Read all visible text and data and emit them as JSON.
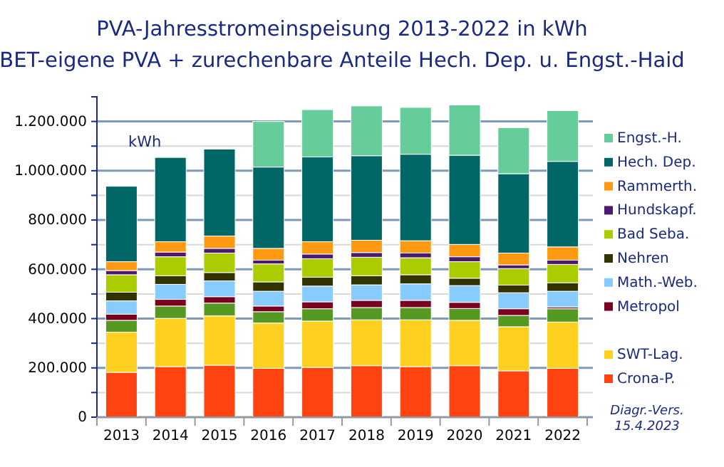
{
  "chart_data": {
    "type": "bar",
    "stacked": true,
    "title": "PVA-Jahresstromeinspeisung 2013-2022 in kWh",
    "subtitle": "BET-eigene PVA + zurechenbare Anteile Hech. Dep. u. Engst.-Haid",
    "ylabel": "kWh",
    "categories": [
      "2013",
      "2014",
      "2015",
      "2016",
      "2017",
      "2018",
      "2019",
      "2020",
      "2021",
      "2022"
    ],
    "series": [
      {
        "name": "Crona-P.",
        "color": "#ff4411",
        "values": [
          182000,
          205000,
          211000,
          198000,
          202000,
          209000,
          205000,
          209000,
          188000,
          198000
        ]
      },
      {
        "name": "SWT-Lag.",
        "color": "#ffd020",
        "values": [
          163000,
          196000,
          200000,
          184000,
          188000,
          186000,
          190000,
          184000,
          179000,
          188000
        ]
      },
      {
        "color": "#559922",
        "values": [
          48000,
          50000,
          52000,
          46000,
          50000,
          50000,
          50000,
          48000,
          46000,
          54000
        ]
      },
      {
        "name": "Metropol",
        "color": "#7a0022",
        "values": [
          25000,
          27000,
          26000,
          23000,
          28000,
          29000,
          29000,
          25000,
          27000,
          7000
        ]
      },
      {
        "name": "Math.-Web.",
        "color": "#88ccff",
        "values": [
          54000,
          61000,
          64000,
          60000,
          64000,
          63000,
          67000,
          68000,
          65000,
          64000
        ]
      },
      {
        "name": "Nehren",
        "color": "#333300",
        "values": [
          35000,
          35000,
          34000,
          38000,
          36000,
          37000,
          37000,
          30000,
          31000,
          34000
        ]
      },
      {
        "name": "Bad Seba.",
        "color": "#aacc00",
        "values": [
          71000,
          77000,
          79000,
          73000,
          75000,
          75000,
          69000,
          67000,
          67000,
          75000
        ]
      },
      {
        "name": "Hundskapf.",
        "color": "#4b1a6e",
        "values": [
          17000,
          19000,
          19000,
          15000,
          19000,
          19000,
          19000,
          20000,
          15000,
          17000
        ]
      },
      {
        "name": "Rammerth.",
        "color": "#ff9911",
        "values": [
          36000,
          42000,
          50000,
          48000,
          50000,
          50000,
          50000,
          50000,
          48000,
          54000
        ]
      },
      {
        "name": "Hech. Dep.",
        "color": "#006666",
        "values": [
          306000,
          342000,
          353000,
          330000,
          344000,
          343000,
          351000,
          362000,
          322000,
          347000
        ]
      },
      {
        "name": "Engst.-H.",
        "color": "#66cc99",
        "values": [
          0,
          0,
          0,
          185000,
          192000,
          202000,
          190000,
          204000,
          187000,
          206000
        ]
      }
    ],
    "ylim": [
      0,
      1300000
    ],
    "yticks": [
      {
        "value": 0,
        "label": "0"
      },
      {
        "value": 100000,
        "label": null
      },
      {
        "value": 200000,
        "label": "200.000"
      },
      {
        "value": 300000,
        "label": null
      },
      {
        "value": 400000,
        "label": "400.000"
      },
      {
        "value": 500000,
        "label": null
      },
      {
        "value": 600000,
        "label": "600.000"
      },
      {
        "value": 700000,
        "label": null
      },
      {
        "value": 800000,
        "label": "800.000"
      },
      {
        "value": 900000,
        "label": null
      },
      {
        "value": 1000000,
        "label": "1.000.000"
      },
      {
        "value": 1100000,
        "label": null
      },
      {
        "value": 1200000,
        "label": "1.200.000"
      }
    ],
    "grid": "y",
    "legend": "right",
    "annotations": [
      "Diagr.-Vers.\n15.4.2023"
    ]
  }
}
